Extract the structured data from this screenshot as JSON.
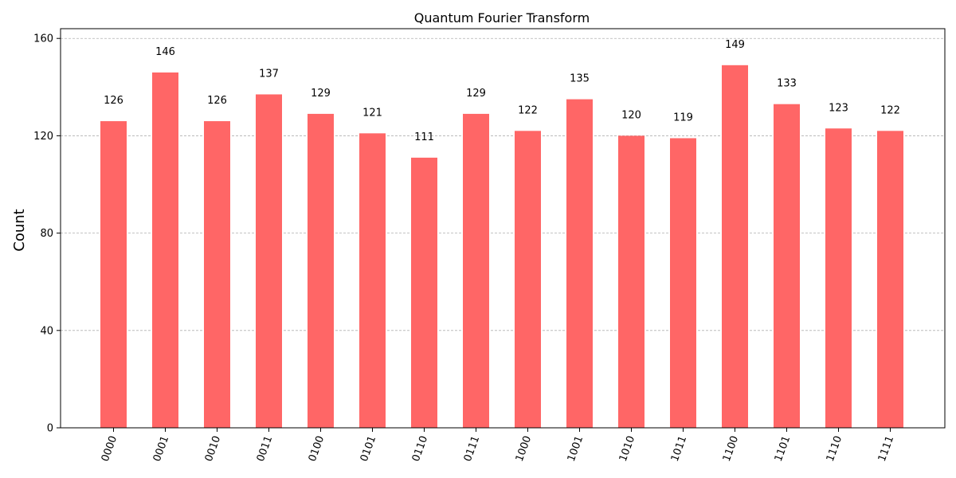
{
  "chart_data": {
    "type": "bar",
    "title": "Quantum Fourier Transform",
    "xlabel": "",
    "ylabel": "Count",
    "categories": [
      "0000",
      "0001",
      "0010",
      "0011",
      "0100",
      "0101",
      "0110",
      "0111",
      "1000",
      "1001",
      "1010",
      "1011",
      "1100",
      "1101",
      "1110",
      "1111"
    ],
    "values": [
      126,
      146,
      126,
      137,
      129,
      121,
      111,
      129,
      122,
      135,
      120,
      119,
      149,
      133,
      123,
      122
    ],
    "ylim": [
      0,
      164
    ],
    "yticks": [
      0,
      40,
      80,
      120,
      160
    ],
    "grid": true,
    "bar_color": "#ff6666",
    "grid_color": "#b0b0b0",
    "data_labels": true
  }
}
